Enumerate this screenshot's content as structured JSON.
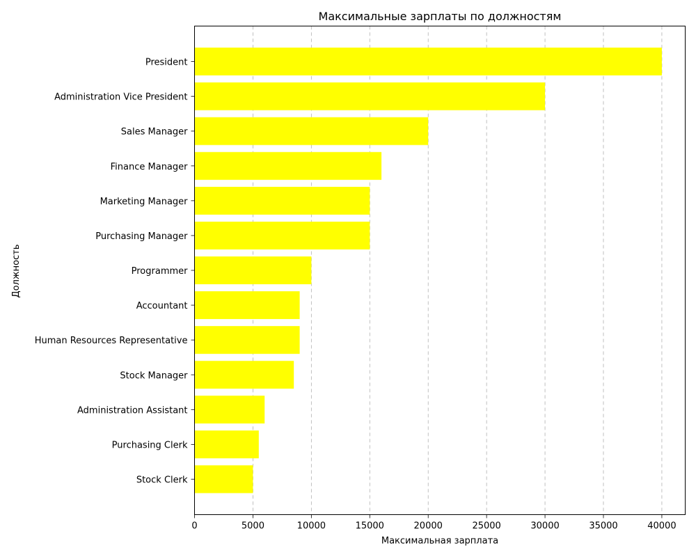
{
  "chart_data": {
    "type": "bar",
    "orientation": "horizontal",
    "title": "Максимальные зарплаты по должностям",
    "xlabel": "Максимальная зарплата",
    "ylabel": "Должность",
    "categories": [
      "President",
      "Administration Vice President",
      "Sales Manager",
      "Finance Manager",
      "Marketing Manager",
      "Purchasing Manager",
      "Programmer",
      "Accountant",
      "Human Resources Representative",
      "Stock Manager",
      "Administration Assistant",
      "Purchasing Clerk",
      "Stock Clerk"
    ],
    "values": [
      40000,
      30000,
      20000,
      16000,
      15000,
      15000,
      10000,
      9000,
      9000,
      8500,
      6000,
      5500,
      5000
    ],
    "xlim": [
      0,
      42000
    ],
    "xticks": [
      0,
      5000,
      10000,
      15000,
      20000,
      25000,
      30000,
      35000,
      40000
    ],
    "grid": "x-axis dashed",
    "bar_color": "#ffff00"
  }
}
